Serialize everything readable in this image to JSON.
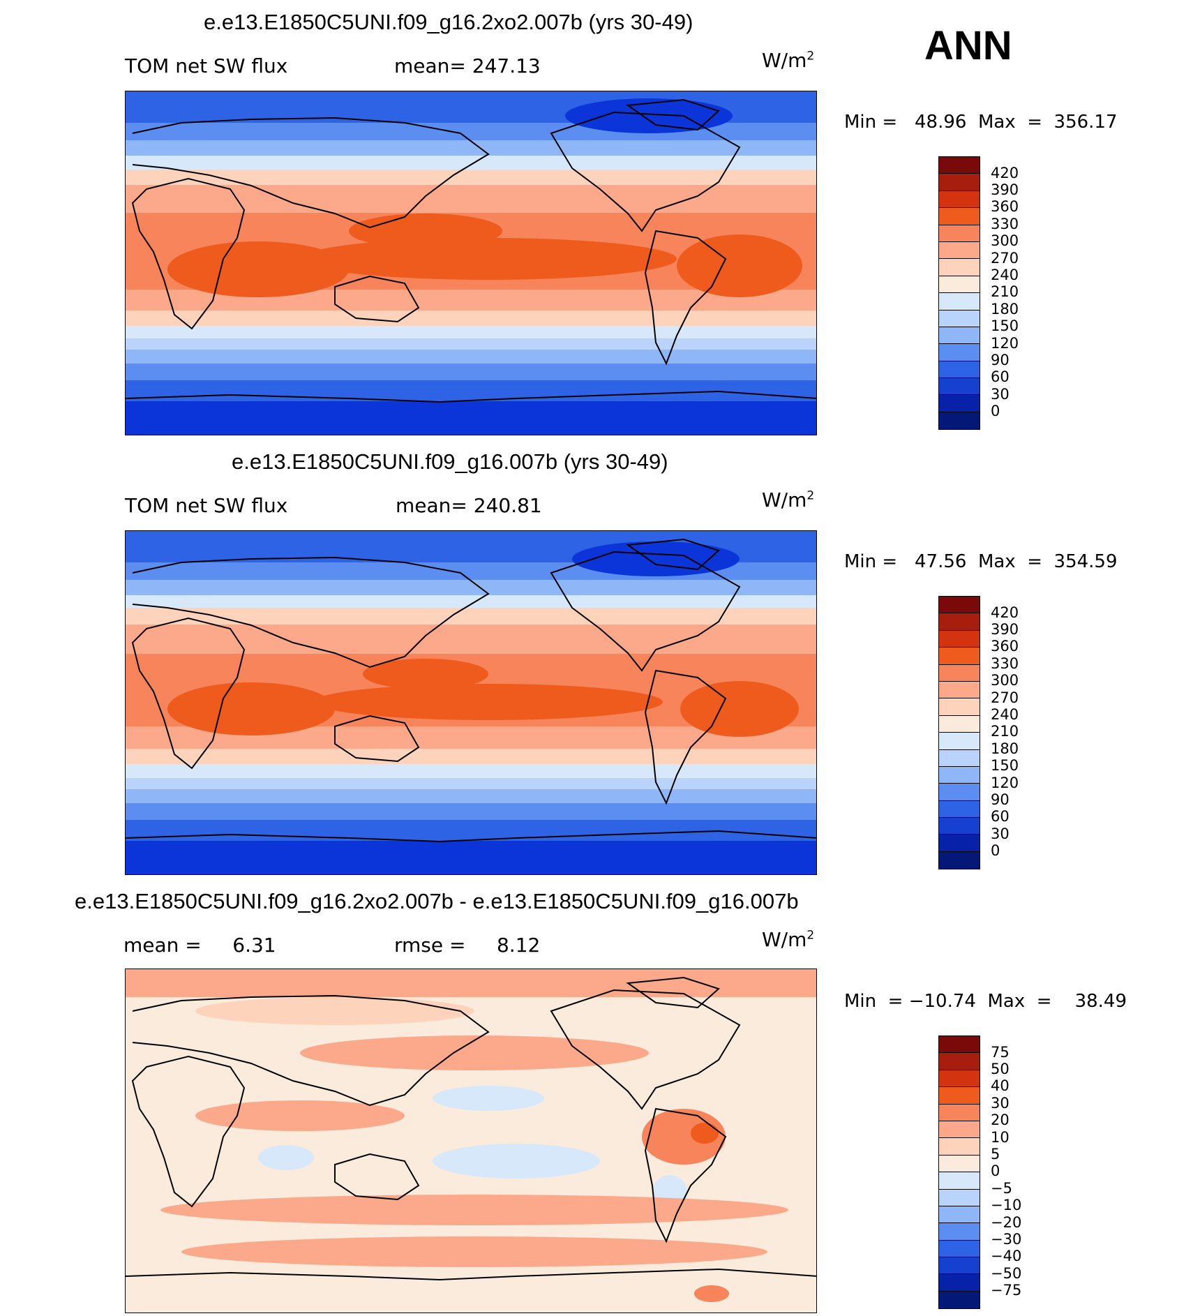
{
  "season": "ANN",
  "units_base": "W/m",
  "units_exp": "2",
  "panels": [
    {
      "title": "e.e13.E1850C5UNI.f09_g16.2xo2.007b (yrs 30-49)",
      "variable": "TOM net SW flux",
      "mean_text": "mean= 247.13",
      "minmax_text": "Min =   48.96  Max  =  356.17",
      "levels": [
        "420",
        "390",
        "360",
        "330",
        "300",
        "270",
        "240",
        "210",
        "180",
        "150",
        "120",
        "90",
        "60",
        "30",
        "0"
      ]
    },
    {
      "title": "e.e13.E1850C5UNI.f09_g16.007b (yrs 30-49)",
      "variable": "TOM net SW flux",
      "mean_text": "mean= 240.81",
      "minmax_text": "Min =   47.56  Max  =  354.59",
      "levels": [
        "420",
        "390",
        "360",
        "330",
        "300",
        "270",
        "240",
        "210",
        "180",
        "150",
        "120",
        "90",
        "60",
        "30",
        "0"
      ]
    },
    {
      "title": "e.e13.E1850C5UNI.f09_g16.2xo2.007b - e.e13.E1850C5UNI.f09_g16.007b",
      "mean_text": "mean =     6.31",
      "rmse_text": "rmse =     8.12",
      "minmax_text": "Min  = −10.74  Max  =    38.49",
      "levels": [
        "75",
        "50",
        "40",
        "30",
        "20",
        "10",
        "5",
        "0",
        "−5",
        "−10",
        "−20",
        "−30",
        "−40",
        "−50",
        "−75"
      ]
    }
  ],
  "colors": {
    "palette_top_to_bottom": [
      "#7a0a0a",
      "#a81e0e",
      "#d3330f",
      "#ef5a1d",
      "#f7845a",
      "#fba98a",
      "#fdd3bc",
      "#fbebdc",
      "#d8e8fb",
      "#b9d3fb",
      "#8fb6f6",
      "#5b8ef0",
      "#2f63e5",
      "#1640cf",
      "#0722a8",
      "#041877"
    ],
    "ocean_deep_blue": "#0b35d8",
    "coast": "#000000"
  }
}
